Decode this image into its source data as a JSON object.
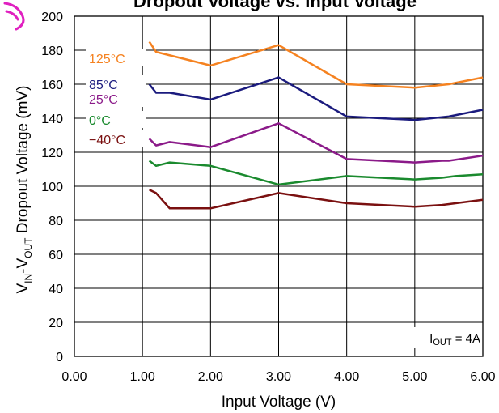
{
  "chart_data": {
    "type": "line",
    "title": "Dropout Voltage vs. Input Voltage",
    "xlabel": "Input Voltage (V)",
    "ylabel": {
      "p1": "V",
      "s1": "IN",
      "p2": "-V",
      "s2": "OUT",
      "p3": " Dropout Voltage (mV)"
    },
    "xlim": [
      0,
      6
    ],
    "ylim": [
      0,
      200
    ],
    "x_ticks": [
      0,
      1,
      2,
      3,
      4,
      5,
      6
    ],
    "x_tick_labels": [
      "0.00",
      "1.00",
      "2.00",
      "3.00",
      "4.00",
      "5.00",
      "6.00"
    ],
    "y_ticks": [
      0,
      20,
      40,
      60,
      80,
      100,
      120,
      140,
      160,
      180,
      200
    ],
    "y_tick_labels": [
      "0",
      "20",
      "40",
      "60",
      "80",
      "100",
      "120",
      "140",
      "160",
      "180",
      "200"
    ],
    "grid": true,
    "legend_placement": "top-left inside plot",
    "annotation": {
      "prefix": "I",
      "sub": "OUT",
      "suffix": " = 4A"
    },
    "series": [
      {
        "name": "125°C",
        "color": "#F58220",
        "x": [
          1.1,
          1.2,
          2.0,
          3.0,
          4.0,
          5.0,
          5.5,
          6.0
        ],
        "y": [
          185,
          179,
          171,
          183,
          160,
          158,
          160,
          164
        ]
      },
      {
        "name": "85°C",
        "color": "#1B1B7E",
        "x": [
          1.1,
          1.2,
          1.4,
          2.0,
          3.0,
          4.0,
          5.0,
          5.5,
          6.0
        ],
        "y": [
          160,
          155,
          155,
          151,
          164,
          141,
          139,
          141,
          145
        ]
      },
      {
        "name": "25°C",
        "color": "#8B1A89",
        "x": [
          1.1,
          1.2,
          1.4,
          2.0,
          3.0,
          4.0,
          5.0,
          5.4,
          5.5,
          6.0
        ],
        "y": [
          128,
          124,
          126,
          123,
          137,
          116,
          114,
          115,
          115,
          118
        ]
      },
      {
        "name": "0°C",
        "color": "#1A8A2E",
        "x": [
          1.1,
          1.2,
          1.4,
          2.0,
          3.0,
          4.0,
          5.0,
          5.4,
          5.6,
          6.0
        ],
        "y": [
          115,
          112,
          114,
          112,
          101,
          106,
          104,
          105,
          106,
          107
        ]
      },
      {
        "name": "−40°C",
        "color": "#7A1010",
        "x": [
          1.1,
          1.2,
          1.4,
          2.0,
          3.0,
          4.0,
          5.0,
          5.4,
          5.6,
          6.0
        ],
        "y": [
          98,
          96,
          87,
          87,
          96,
          90,
          88,
          89,
          90,
          92
        ]
      }
    ]
  }
}
